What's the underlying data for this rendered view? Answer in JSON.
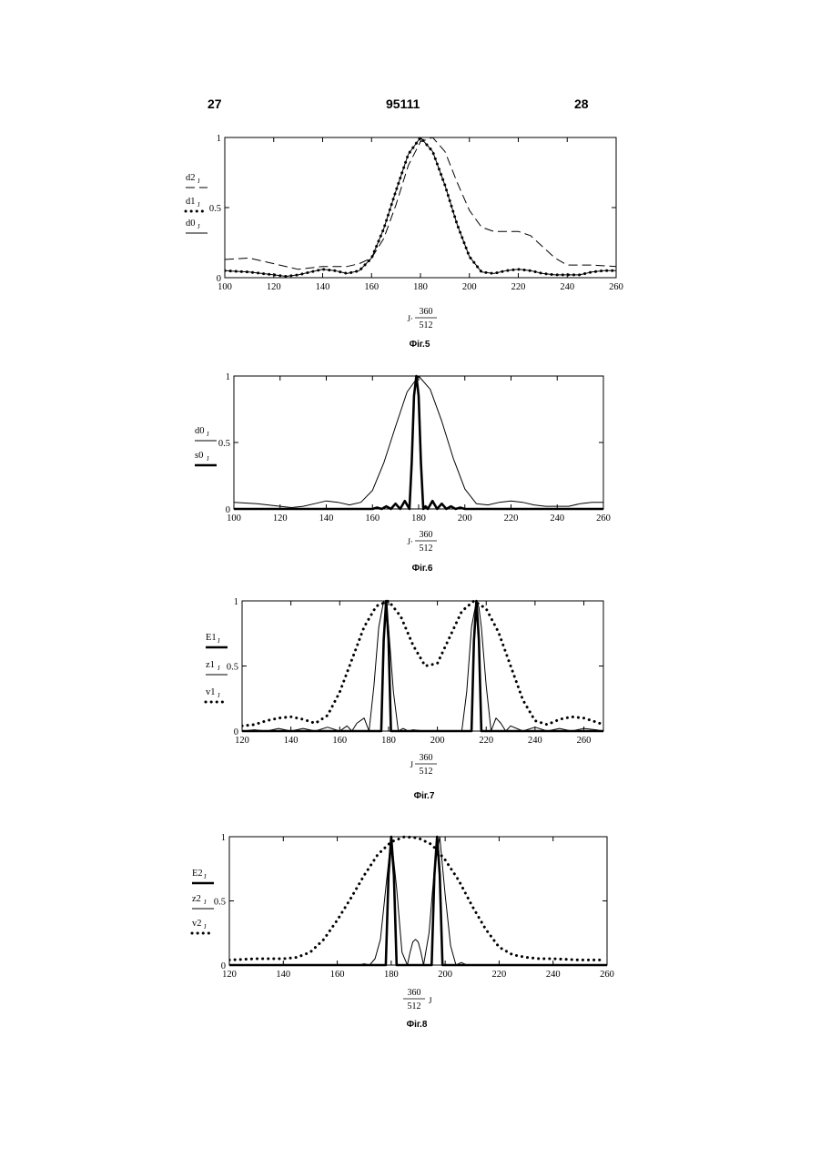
{
  "header": {
    "left_page": "27",
    "patent_number": "95111",
    "right_page": "28"
  },
  "chart_data": [
    {
      "type": "line",
      "caption": "Фіг.5",
      "xlabel_parts": [
        "J·",
        "360",
        "512"
      ],
      "xlim": [
        100,
        260
      ],
      "ylim": [
        0,
        1
      ],
      "xticks": [
        "100",
        "120",
        "140",
        "160",
        "180",
        "200",
        "220",
        "240",
        "260"
      ],
      "yticks": [
        "0",
        "0.5",
        "1"
      ],
      "legend": [
        {
          "name": "d2",
          "sub": "J",
          "style": "dashed"
        },
        {
          "name": "d1",
          "sub": "J",
          "style": "dotted-thick"
        },
        {
          "name": "d0",
          "sub": "J",
          "style": "solid"
        }
      ],
      "series": [
        {
          "name": "d2J",
          "style": "dashed",
          "x": [
            100,
            110,
            120,
            130,
            140,
            150,
            155,
            160,
            165,
            170,
            175,
            180,
            185,
            190,
            195,
            200,
            205,
            210,
            215,
            220,
            225,
            230,
            235,
            240,
            250,
            260
          ],
          "y": [
            0.13,
            0.14,
            0.1,
            0.06,
            0.08,
            0.08,
            0.1,
            0.14,
            0.28,
            0.52,
            0.8,
            0.97,
            1.0,
            0.9,
            0.68,
            0.48,
            0.36,
            0.33,
            0.33,
            0.33,
            0.3,
            0.22,
            0.14,
            0.09,
            0.09,
            0.08
          ]
        },
        {
          "name": "d1J",
          "style": "dotted-thick",
          "x": [
            100,
            110,
            120,
            125,
            130,
            135,
            140,
            145,
            150,
            155,
            160,
            165,
            170,
            175,
            180,
            185,
            190,
            195,
            200,
            205,
            210,
            215,
            220,
            225,
            230,
            235,
            240,
            245,
            250,
            255,
            260
          ],
          "y": [
            0.05,
            0.04,
            0.02,
            0.01,
            0.02,
            0.04,
            0.06,
            0.05,
            0.03,
            0.05,
            0.14,
            0.35,
            0.62,
            0.88,
            1.0,
            0.9,
            0.66,
            0.38,
            0.15,
            0.04,
            0.03,
            0.05,
            0.06,
            0.05,
            0.03,
            0.02,
            0.02,
            0.02,
            0.04,
            0.05,
            0.05
          ]
        },
        {
          "name": "d0J",
          "style": "solid",
          "x": [
            100,
            110,
            120,
            125,
            130,
            135,
            140,
            145,
            150,
            155,
            160,
            165,
            170,
            175,
            180,
            185,
            190,
            195,
            200,
            205,
            210,
            215,
            220,
            225,
            230,
            235,
            240,
            245,
            250,
            255,
            260
          ],
          "y": [
            0.05,
            0.04,
            0.02,
            0.01,
            0.02,
            0.04,
            0.06,
            0.05,
            0.03,
            0.05,
            0.14,
            0.35,
            0.62,
            0.88,
            1.0,
            0.9,
            0.66,
            0.38,
            0.15,
            0.04,
            0.03,
            0.05,
            0.06,
            0.05,
            0.03,
            0.02,
            0.02,
            0.02,
            0.04,
            0.05,
            0.05
          ]
        }
      ]
    },
    {
      "type": "line",
      "caption": "Фіг.6",
      "xlabel_parts": [
        "J·",
        "360",
        "512"
      ],
      "xlim": [
        100,
        260
      ],
      "ylim": [
        0,
        1
      ],
      "xticks": [
        "100",
        "120",
        "140",
        "160",
        "180",
        "200",
        "220",
        "240",
        "260"
      ],
      "yticks": [
        "0",
        "0.5",
        "1"
      ],
      "legend": [
        {
          "name": "d0",
          "sub": "J",
          "style": "solid"
        },
        {
          "name": "s0",
          "sub": "J",
          "style": "thick"
        }
      ],
      "series": [
        {
          "name": "d0J",
          "style": "solid",
          "x": [
            100,
            110,
            120,
            125,
            130,
            135,
            140,
            145,
            150,
            155,
            160,
            165,
            170,
            175,
            180,
            185,
            190,
            195,
            200,
            205,
            210,
            215,
            220,
            225,
            230,
            235,
            240,
            245,
            250,
            255,
            260
          ],
          "y": [
            0.05,
            0.04,
            0.02,
            0.01,
            0.02,
            0.04,
            0.06,
            0.05,
            0.03,
            0.05,
            0.14,
            0.35,
            0.62,
            0.88,
            1.0,
            0.9,
            0.66,
            0.38,
            0.15,
            0.04,
            0.03,
            0.05,
            0.06,
            0.05,
            0.03,
            0.02,
            0.02,
            0.02,
            0.04,
            0.05,
            0.05
          ]
        },
        {
          "name": "s0J",
          "style": "thick",
          "x": [
            100,
            160,
            162,
            164,
            166,
            168,
            170,
            172,
            174,
            176,
            177,
            178,
            179,
            180,
            181,
            182,
            183,
            184,
            186,
            188,
            190,
            192,
            194,
            196,
            198,
            200,
            260
          ],
          "y": [
            0,
            0,
            0.01,
            0,
            0.02,
            0,
            0.04,
            0,
            0.06,
            0,
            0.35,
            0.85,
            1.0,
            0.85,
            0.35,
            0,
            0.02,
            0,
            0.06,
            0,
            0.04,
            0,
            0.02,
            0,
            0.01,
            0,
            0
          ]
        }
      ]
    },
    {
      "type": "line",
      "caption": "Фіг.7",
      "xlabel_parts": [
        "J",
        "360",
        "512"
      ],
      "xlim": [
        120,
        268
      ],
      "ylim": [
        0,
        1
      ],
      "xticks": [
        "120",
        "140",
        "160",
        "180",
        "200",
        "220",
        "240",
        "260"
      ],
      "yticks": [
        "0",
        "0.5",
        "1"
      ],
      "legend": [
        {
          "name": "E1",
          "sub": "J",
          "style": "thick"
        },
        {
          "name": "z1",
          "sub": "J",
          "style": "solid"
        },
        {
          "name": "v1",
          "sub": "J",
          "style": "dotted-thick"
        }
      ],
      "series": [
        {
          "name": "E1J",
          "style": "thick",
          "x": [
            120,
            177,
            178,
            179,
            180,
            181,
            214,
            215,
            216,
            217,
            218,
            268
          ],
          "y": [
            0,
            0,
            0.7,
            1.0,
            0.7,
            0,
            0,
            0.7,
            1.0,
            0.7,
            0,
            0
          ]
        },
        {
          "name": "z1J",
          "style": "solid",
          "x": [
            120,
            125,
            130,
            135,
            140,
            145,
            150,
            155,
            160,
            163,
            165,
            167,
            170,
            172,
            174,
            176,
            178,
            179,
            180,
            182,
            184,
            186,
            188,
            190,
            195,
            200,
            205,
            210,
            212,
            214,
            216,
            217,
            218,
            220,
            222,
            224,
            226,
            228,
            230,
            235,
            240,
            245,
            250,
            255,
            260,
            265,
            268
          ],
          "y": [
            0,
            0.01,
            0,
            0.02,
            0,
            0.02,
            0,
            0.03,
            0,
            0.04,
            0,
            0.06,
            0.1,
            0,
            0.35,
            0.8,
            1.0,
            0.95,
            0.8,
            0.3,
            0,
            0.02,
            0,
            0.01,
            0,
            0,
            0,
            0,
            0.3,
            0.8,
            1.0,
            0.95,
            0.8,
            0.35,
            0,
            0.1,
            0.06,
            0,
            0.04,
            0,
            0.03,
            0,
            0.02,
            0,
            0.02,
            0.01,
            0
          ]
        },
        {
          "name": "v1J",
          "style": "dotted-thick",
          "x": [
            120,
            125,
            130,
            135,
            140,
            145,
            150,
            155,
            160,
            165,
            170,
            175,
            180,
            185,
            190,
            195,
            200,
            205,
            210,
            215,
            220,
            225,
            230,
            235,
            240,
            245,
            250,
            255,
            260,
            265,
            268
          ],
          "y": [
            0.04,
            0.05,
            0.08,
            0.1,
            0.11,
            0.09,
            0.06,
            0.12,
            0.3,
            0.55,
            0.8,
            0.96,
            1.0,
            0.88,
            0.66,
            0.5,
            0.52,
            0.72,
            0.92,
            1.0,
            0.94,
            0.76,
            0.5,
            0.24,
            0.08,
            0.05,
            0.09,
            0.11,
            0.1,
            0.07,
            0.05
          ]
        }
      ]
    },
    {
      "type": "line",
      "caption": "Фіг.8",
      "xlabel_parts": [
        "360",
        "512",
        "J"
      ],
      "xlim": [
        120,
        260
      ],
      "ylim": [
        0,
        1
      ],
      "xticks": [
        "120",
        "140",
        "160",
        "180",
        "200",
        "220",
        "240",
        "260"
      ],
      "yticks": [
        "0",
        "0.5",
        "1"
      ],
      "legend": [
        {
          "name": "E2",
          "sub": "J",
          "style": "thick"
        },
        {
          "name": "z2",
          "sub": "J",
          "style": "solid"
        },
        {
          "name": "v2",
          "sub": "J",
          "style": "dotted-thick"
        }
      ],
      "series": [
        {
          "name": "E2J",
          "style": "thick",
          "x": [
            120,
            178,
            179,
            180,
            181,
            182,
            195,
            196,
            197,
            198,
            199,
            260
          ],
          "y": [
            0,
            0,
            0.7,
            1.0,
            0.7,
            0,
            0,
            0.7,
            1.0,
            0.7,
            0,
            0
          ]
        },
        {
          "name": "z2J",
          "style": "solid",
          "x": [
            120,
            168,
            170,
            172,
            174,
            176,
            178,
            180,
            182,
            184,
            186,
            187,
            188,
            189,
            190,
            191,
            192,
            194,
            196,
            198,
            200,
            202,
            204,
            206,
            208,
            260
          ],
          "y": [
            0,
            0,
            0.01,
            0,
            0.05,
            0.2,
            0.6,
            1.0,
            0.6,
            0.1,
            0,
            0.1,
            0.18,
            0.2,
            0.18,
            0.1,
            0,
            0.25,
            0.75,
            1.0,
            0.55,
            0.15,
            0,
            0.02,
            0,
            0
          ]
        },
        {
          "name": "v2J",
          "style": "dotted-thick",
          "x": [
            120,
            130,
            140,
            145,
            150,
            155,
            160,
            165,
            170,
            175,
            180,
            185,
            190,
            195,
            200,
            205,
            210,
            215,
            220,
            225,
            230,
            235,
            240,
            250,
            258
          ],
          "y": [
            0.04,
            0.05,
            0.05,
            0.06,
            0.1,
            0.2,
            0.35,
            0.52,
            0.7,
            0.86,
            0.96,
            1.0,
            0.99,
            0.94,
            0.82,
            0.66,
            0.46,
            0.28,
            0.14,
            0.08,
            0.06,
            0.05,
            0.05,
            0.04,
            0.04
          ]
        }
      ]
    }
  ]
}
